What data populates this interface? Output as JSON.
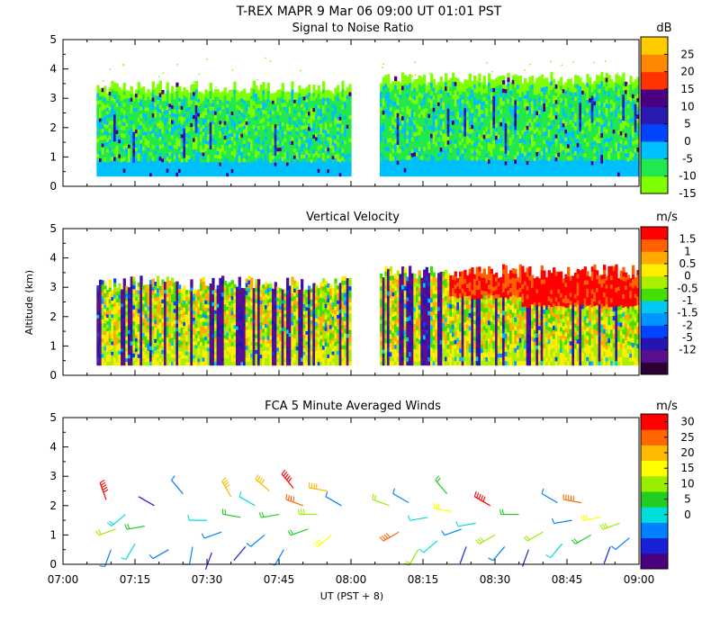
{
  "figure_title": "T-REX   MAPR   9 Mar 06   09:00 UT   01:01   PST",
  "y_axis_label": "Altitude (km)",
  "x_axis_label": "UT  (PST + 8)",
  "x_tick_labels": [
    "07:00",
    "07:15",
    "07:30",
    "07:45",
    "08:00",
    "08:15",
    "08:30",
    "08:45",
    "09:00"
  ],
  "y_tick_labels": [
    "0",
    "1",
    "2",
    "3",
    "4",
    "5"
  ],
  "colors": {
    "snr": [
      "#7fff00",
      "#22e84e",
      "#00bfff",
      "#0044ff",
      "#2a1ab0",
      "#4b0082",
      "#ff3300",
      "#ff8800",
      "#ffcc00"
    ],
    "velocity": [
      "#2b0033",
      "#5a0f91",
      "#2414b3",
      "#0044ff",
      "#0095ff",
      "#00c8ee",
      "#44dd00",
      "#aaee00",
      "#ffee00",
      "#ffaa00",
      "#ff6000",
      "#ff0000"
    ],
    "wind": [
      "#4b0082",
      "#1a20d8",
      "#0080ff",
      "#00dddd",
      "#22cc22",
      "#99ee00",
      "#ffff00",
      "#ffbb00",
      "#ff6600",
      "#ff0000"
    ]
  },
  "chart_data": [
    {
      "type": "heatmap",
      "title": "Signal to Noise Ratio",
      "unit": "dB",
      "xlabel": "UT  (PST + 8)",
      "ylabel": "Altitude (km)",
      "xlim": [
        "07:00",
        "09:00"
      ],
      "ylim": [
        0,
        5
      ],
      "colorbar_ticks": [
        "25",
        "20",
        "15",
        "10",
        "5",
        "0",
        "-5",
        "-10",
        "-15"
      ],
      "colorbar_values": [
        25,
        20,
        15,
        10,
        5,
        0,
        -5,
        -10,
        -15
      ],
      "data_coverage": [
        {
          "start": "07:07",
          "end": "08:00",
          "alt_bottom_km": 0.35,
          "alt_top_km": 3.3
        },
        {
          "start": "08:06",
          "end": "09:00",
          "alt_bottom_km": 0.35,
          "alt_top_km": 3.6
        }
      ]
    },
    {
      "type": "heatmap",
      "title": "Vertical Velocity",
      "unit": "m/s",
      "xlabel": "UT  (PST + 8)",
      "ylabel": "Altitude (km)",
      "xlim": [
        "07:00",
        "09:00"
      ],
      "ylim": [
        0,
        5
      ],
      "colorbar_ticks": [
        "1.5",
        "1",
        "0.5",
        "0",
        "-0.5",
        "-1",
        "-1.5",
        "-2",
        "-5",
        "-12"
      ],
      "colorbar_values": [
        1.5,
        1,
        0.5,
        0,
        -0.5,
        -1,
        -1.5,
        -2,
        -5,
        -12
      ],
      "data_coverage": [
        {
          "start": "07:07",
          "end": "08:00",
          "alt_bottom_km": 0.35,
          "alt_top_km": 3.2
        },
        {
          "start": "08:06",
          "end": "09:00",
          "alt_bottom_km": 0.35,
          "alt_top_km": 3.6
        }
      ]
    },
    {
      "type": "scatter",
      "title": "FCA 5 Minute Averaged Winds",
      "unit": "m/s",
      "xlabel": "UT  (PST + 8)",
      "ylabel": "Altitude (km)",
      "xlim": [
        "07:00",
        "09:00"
      ],
      "ylim": [
        0,
        5
      ],
      "colorbar_ticks": [
        "30",
        "25",
        "20",
        "15",
        "10",
        "5",
        "0"
      ],
      "colorbar_values": [
        30,
        25,
        20,
        15,
        10,
        5,
        0
      ],
      "wind_barbs": [
        {
          "time_min": 9,
          "alt_km": 2.2,
          "speed_ms": 28,
          "dir_deg": 340
        },
        {
          "time_min": 10,
          "alt_km": 0.5,
          "speed_ms": 6,
          "dir_deg": 200
        },
        {
          "time_min": 11,
          "alt_km": 1.2,
          "speed_ms": 14,
          "dir_deg": 250
        },
        {
          "time_min": 13,
          "alt_km": 1.7,
          "speed_ms": 10,
          "dir_deg": 230
        },
        {
          "time_min": 15,
          "alt_km": 0.7,
          "speed_ms": 9,
          "dir_deg": 210
        },
        {
          "time_min": 17,
          "alt_km": 1.3,
          "speed_ms": 13,
          "dir_deg": 260
        },
        {
          "time_min": 19,
          "alt_km": 2.0,
          "speed_ms": 4,
          "dir_deg": 300
        },
        {
          "time_min": 22,
          "alt_km": 0.5,
          "speed_ms": 5,
          "dir_deg": 240
        },
        {
          "time_min": 25,
          "alt_km": 2.4,
          "speed_ms": 7,
          "dir_deg": 320
        },
        {
          "time_min": 27,
          "alt_km": 0.6,
          "speed_ms": 5,
          "dir_deg": 190
        },
        {
          "time_min": 30,
          "alt_km": 1.5,
          "speed_ms": 8,
          "dir_deg": 270
        },
        {
          "time_min": 31,
          "alt_km": 0.4,
          "speed_ms": 4,
          "dir_deg": 200
        },
        {
          "time_min": 33,
          "alt_km": 1.1,
          "speed_ms": 6,
          "dir_deg": 250
        },
        {
          "time_min": 35,
          "alt_km": 2.3,
          "speed_ms": 20,
          "dir_deg": 330
        },
        {
          "time_min": 37,
          "alt_km": 1.6,
          "speed_ms": 11,
          "dir_deg": 280
        },
        {
          "time_min": 38,
          "alt_km": 0.6,
          "speed_ms": 4,
          "dir_deg": 220
        },
        {
          "time_min": 40,
          "alt_km": 2.0,
          "speed_ms": 9,
          "dir_deg": 300
        },
        {
          "time_min": 42,
          "alt_km": 1.0,
          "speed_ms": 6,
          "dir_deg": 230
        },
        {
          "time_min": 43,
          "alt_km": 2.5,
          "speed_ms": 21,
          "dir_deg": 310
        },
        {
          "time_min": 45,
          "alt_km": 1.7,
          "speed_ms": 13,
          "dir_deg": 260
        },
        {
          "time_min": 46,
          "alt_km": 0.5,
          "speed_ms": 5,
          "dir_deg": 210
        },
        {
          "time_min": 48,
          "alt_km": 2.6,
          "speed_ms": 27,
          "dir_deg": 320
        },
        {
          "time_min": 50,
          "alt_km": 2.0,
          "speed_ms": 24,
          "dir_deg": 290
        },
        {
          "time_min": 51,
          "alt_km": 1.2,
          "speed_ms": 12,
          "dir_deg": 250
        },
        {
          "time_min": 53,
          "alt_km": 1.7,
          "speed_ms": 16,
          "dir_deg": 270
        },
        {
          "time_min": 55,
          "alt_km": 2.5,
          "speed_ms": 21,
          "dir_deg": 280
        },
        {
          "time_min": 56,
          "alt_km": 1.0,
          "speed_ms": 19,
          "dir_deg": 230
        },
        {
          "time_min": 58,
          "alt_km": 2.0,
          "speed_ms": 7,
          "dir_deg": 300
        },
        {
          "time_min": 68,
          "alt_km": 2.0,
          "speed_ms": 14,
          "dir_deg": 290
        },
        {
          "time_min": 70,
          "alt_km": 1.1,
          "speed_ms": 24,
          "dir_deg": 240
        },
        {
          "time_min": 72,
          "alt_km": 2.1,
          "speed_ms": 6,
          "dir_deg": 300
        },
        {
          "time_min": 74,
          "alt_km": 0.5,
          "speed_ms": 14,
          "dir_deg": 210
        },
        {
          "time_min": 76,
          "alt_km": 1.6,
          "speed_ms": 8,
          "dir_deg": 260
        },
        {
          "time_min": 78,
          "alt_km": 0.8,
          "speed_ms": 9,
          "dir_deg": 230
        },
        {
          "time_min": 80,
          "alt_km": 2.4,
          "speed_ms": 11,
          "dir_deg": 320
        },
        {
          "time_min": 81,
          "alt_km": 1.8,
          "speed_ms": 19,
          "dir_deg": 280
        },
        {
          "time_min": 83,
          "alt_km": 1.2,
          "speed_ms": 6,
          "dir_deg": 250
        },
        {
          "time_min": 84,
          "alt_km": 0.6,
          "speed_ms": 4,
          "dir_deg": 200
        },
        {
          "time_min": 86,
          "alt_km": 1.4,
          "speed_ms": 9,
          "dir_deg": 260
        },
        {
          "time_min": 89,
          "alt_km": 2.0,
          "speed_ms": 26,
          "dir_deg": 300
        },
        {
          "time_min": 90,
          "alt_km": 1.0,
          "speed_ms": 15,
          "dir_deg": 240
        },
        {
          "time_min": 92,
          "alt_km": 0.6,
          "speed_ms": 5,
          "dir_deg": 220
        },
        {
          "time_min": 95,
          "alt_km": 1.7,
          "speed_ms": 12,
          "dir_deg": 270
        },
        {
          "time_min": 97,
          "alt_km": 0.5,
          "speed_ms": 4,
          "dir_deg": 200
        },
        {
          "time_min": 100,
          "alt_km": 1.1,
          "speed_ms": 14,
          "dir_deg": 240
        },
        {
          "time_min": 103,
          "alt_km": 2.1,
          "speed_ms": 7,
          "dir_deg": 300
        },
        {
          "time_min": 104,
          "alt_km": 0.7,
          "speed_ms": 9,
          "dir_deg": 220
        },
        {
          "time_min": 106,
          "alt_km": 1.5,
          "speed_ms": 6,
          "dir_deg": 260
        },
        {
          "time_min": 108,
          "alt_km": 2.1,
          "speed_ms": 25,
          "dir_deg": 280
        },
        {
          "time_min": 110,
          "alt_km": 1.0,
          "speed_ms": 13,
          "dir_deg": 240
        },
        {
          "time_min": 112,
          "alt_km": 1.6,
          "speed_ms": 18,
          "dir_deg": 260
        },
        {
          "time_min": 114,
          "alt_km": 0.6,
          "speed_ms": 3,
          "dir_deg": 200
        },
        {
          "time_min": 116,
          "alt_km": 1.4,
          "speed_ms": 16,
          "dir_deg": 250
        },
        {
          "time_min": 118,
          "alt_km": 0.9,
          "speed_ms": 5,
          "dir_deg": 230
        }
      ]
    }
  ]
}
